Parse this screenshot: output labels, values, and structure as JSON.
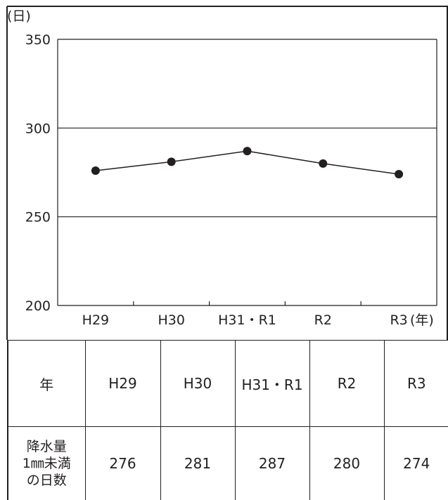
{
  "chart_data": {
    "type": "line",
    "y_unit_label": "(日)",
    "x_unit_label": "(年)",
    "categories": [
      "H29",
      "H30",
      "H31・R1",
      "R2",
      "R3"
    ],
    "values": [
      276,
      281,
      287,
      280,
      274
    ],
    "ylim": [
      200,
      350
    ],
    "y_ticks": [
      200,
      250,
      300,
      350
    ],
    "grid": true,
    "legend": "none"
  },
  "table": {
    "header_label": "年",
    "years": [
      "H29",
      "H30",
      "H31・R1",
      "R2",
      "R3"
    ],
    "row_label_lines": [
      "降水量",
      "1㎜未満",
      "の日数"
    ],
    "values": [
      "276",
      "281",
      "287",
      "280",
      "274"
    ]
  },
  "colors": {
    "line": "#231f20",
    "frame": "#231f20"
  }
}
